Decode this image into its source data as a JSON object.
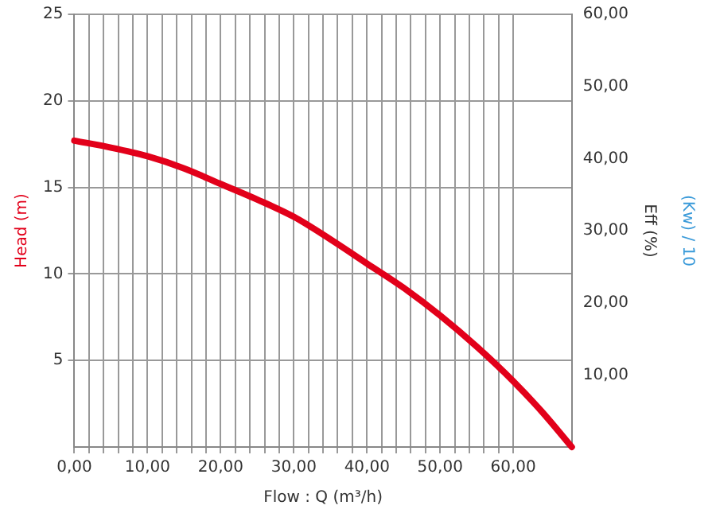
{
  "chart_data": {
    "type": "line",
    "xlabel": "Flow : Q (m³/h)",
    "ylabel": "Head (m)",
    "y2label": "Eff (%)",
    "y3label": "(Kw) / 10",
    "x": [
      0,
      5,
      10,
      15,
      20,
      25,
      30,
      35,
      40,
      45,
      50,
      55,
      60,
      64,
      68
    ],
    "series": [
      {
        "color": "#e2001a",
        "values": [
          17.7,
          17.3,
          16.8,
          16.1,
          15.2,
          14.3,
          13.3,
          12.0,
          10.6,
          9.2,
          7.6,
          5.8,
          3.8,
          2.0,
          0
        ]
      }
    ],
    "xlim": [
      0,
      68
    ],
    "xticks": [
      {
        "value": 0,
        "label": "0,00"
      },
      {
        "value": 2,
        "label": null
      },
      {
        "value": 4,
        "label": null
      },
      {
        "value": 6,
        "label": null
      },
      {
        "value": 8,
        "label": null
      },
      {
        "value": 10,
        "label": "10,00"
      },
      {
        "value": 12,
        "label": null
      },
      {
        "value": 14,
        "label": null
      },
      {
        "value": 16,
        "label": null
      },
      {
        "value": 18,
        "label": null
      },
      {
        "value": 20,
        "label": "20,00"
      },
      {
        "value": 22,
        "label": null
      },
      {
        "value": 24,
        "label": null
      },
      {
        "value": 26,
        "label": null
      },
      {
        "value": 28,
        "label": null
      },
      {
        "value": 30,
        "label": "30,00"
      },
      {
        "value": 32,
        "label": null
      },
      {
        "value": 34,
        "label": null
      },
      {
        "value": 36,
        "label": null
      },
      {
        "value": 38,
        "label": null
      },
      {
        "value": 40,
        "label": "40,00"
      },
      {
        "value": 42,
        "label": null
      },
      {
        "value": 44,
        "label": null
      },
      {
        "value": 46,
        "label": null
      },
      {
        "value": 48,
        "label": null
      },
      {
        "value": 50,
        "label": "50,00"
      },
      {
        "value": 52,
        "label": null
      },
      {
        "value": 54,
        "label": null
      },
      {
        "value": 56,
        "label": null
      },
      {
        "value": 58,
        "label": null
      },
      {
        "value": 60,
        "label": "60,00"
      }
    ],
    "ylim": [
      0,
      25
    ],
    "yticks": [
      5,
      10,
      15,
      20,
      25
    ],
    "y2lim": [
      0,
      60
    ],
    "y2ticks": [
      {
        "value": 10,
        "label": "10,00"
      },
      {
        "value": 20,
        "label": "20,00"
      },
      {
        "value": 30,
        "label": "30,00"
      },
      {
        "value": 40,
        "label": "40,00"
      },
      {
        "value": 50,
        "label": "50,00"
      },
      {
        "value": 60,
        "label": "60,00"
      }
    ],
    "grid": true,
    "legend": false,
    "marker": "none",
    "line_style": "solid"
  }
}
